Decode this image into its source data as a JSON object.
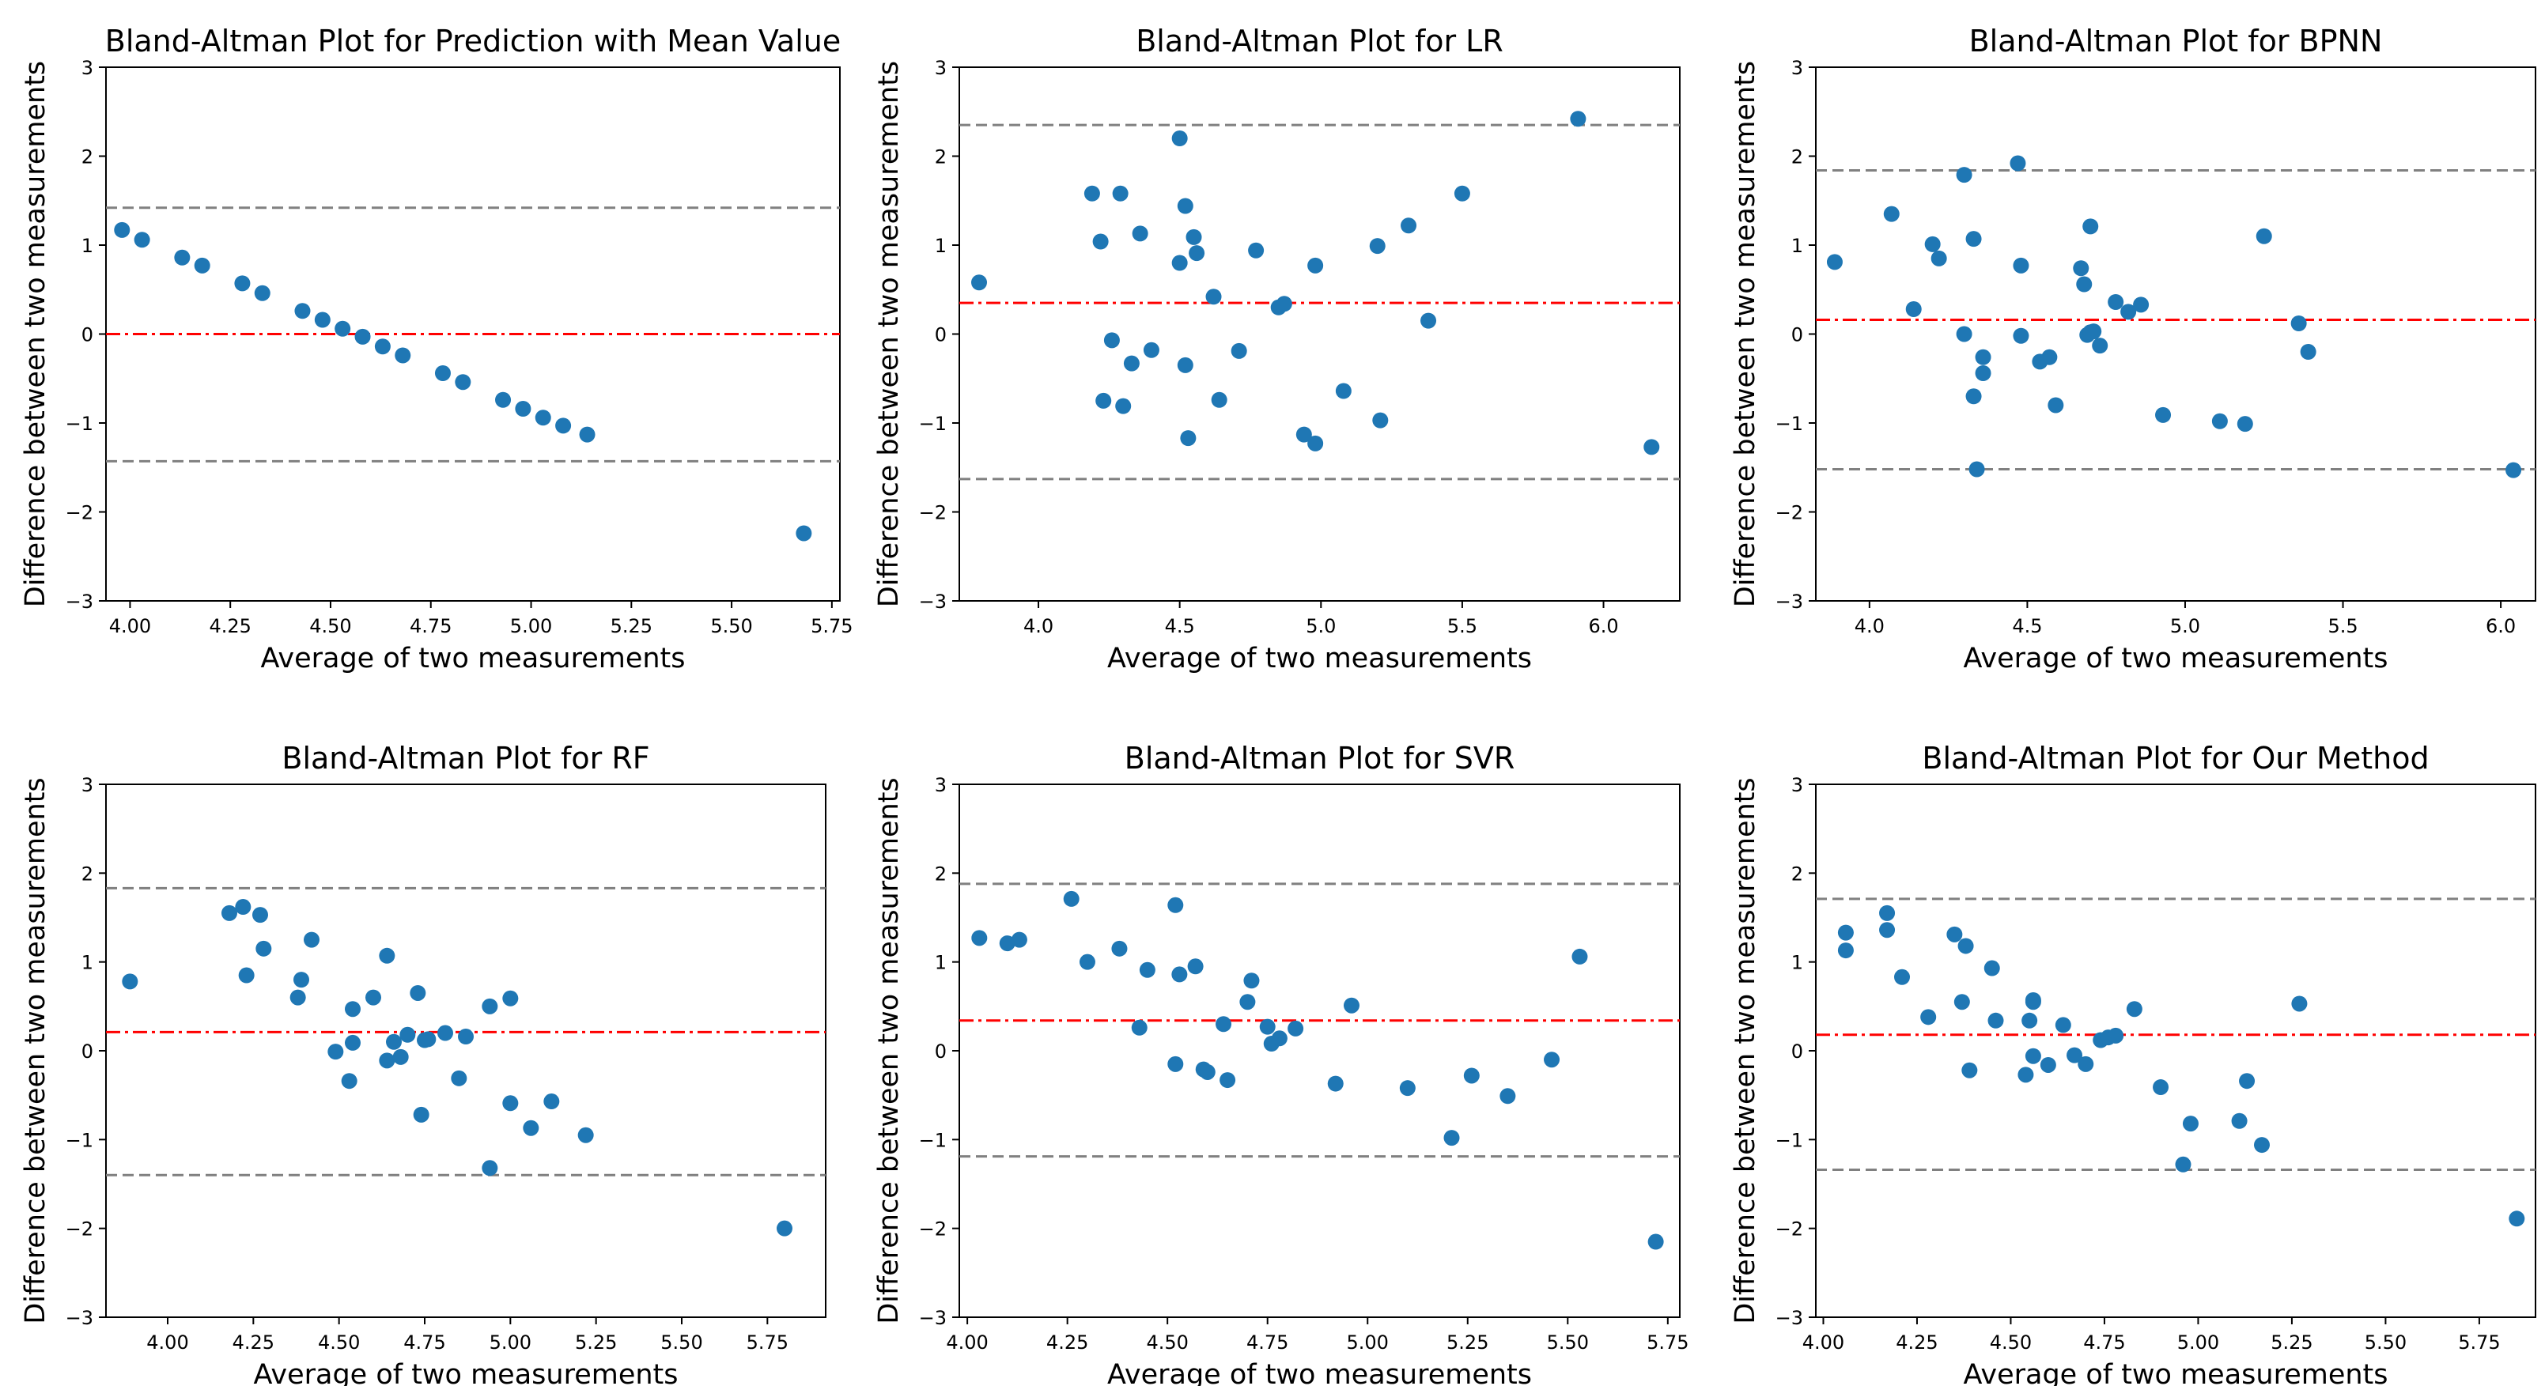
{
  "chart_data": [
    {
      "type": "scatter",
      "title": "Bland-Altman Plot for Prediction with Mean Value",
      "xlabel": "Average of two measurements",
      "ylabel": "Difference between two measurements",
      "xlim": [
        3.94,
        5.77
      ],
      "ylim": [
        -3,
        3
      ],
      "xticks": [
        4.0,
        4.25,
        4.5,
        4.75,
        5.0,
        5.25,
        5.5,
        5.75
      ],
      "xtick_labels": [
        "4.00",
        "4.25",
        "4.50",
        "4.75",
        "5.00",
        "5.25",
        "5.50",
        "5.75"
      ],
      "yticks": [
        -3,
        -2,
        -1,
        0,
        1,
        2,
        3
      ],
      "ytick_labels": [
        "−3",
        "−2",
        "−1",
        "0",
        "1",
        "2",
        "3"
      ],
      "mean_line": 0.0,
      "upper_loa": 1.42,
      "lower_loa": -1.43,
      "x": [
        3.98,
        4.03,
        4.13,
        4.18,
        4.28,
        4.33,
        4.43,
        4.48,
        4.53,
        4.58,
        4.63,
        4.68,
        4.78,
        4.83,
        4.93,
        4.98,
        5.03,
        5.08,
        5.14,
        5.68
      ],
      "y": [
        1.17,
        1.06,
        0.86,
        0.77,
        0.57,
        0.46,
        0.26,
        0.16,
        0.06,
        -0.03,
        -0.14,
        -0.24,
        -0.44,
        -0.54,
        -0.74,
        -0.84,
        -0.94,
        -1.03,
        -1.13,
        -2.24
      ]
    },
    {
      "type": "scatter",
      "title": "Bland-Altman Plot for LR",
      "xlabel": "Average of two measurements",
      "ylabel": "Difference between two measurements",
      "xlim": [
        3.72,
        6.27
      ],
      "ylim": [
        -3,
        3
      ],
      "xticks": [
        4.0,
        4.5,
        5.0,
        5.5,
        6.0
      ],
      "xtick_labels": [
        "4.0",
        "4.5",
        "5.0",
        "5.5",
        "6.0"
      ],
      "yticks": [
        -3,
        -2,
        -1,
        0,
        1,
        2,
        3
      ],
      "ytick_labels": [
        "−3",
        "−2",
        "−1",
        "0",
        "1",
        "2",
        "3"
      ],
      "mean_line": 0.35,
      "upper_loa": 2.35,
      "lower_loa": -1.63,
      "x": [
        3.79,
        4.19,
        4.22,
        4.23,
        4.26,
        4.29,
        4.3,
        4.33,
        4.36,
        4.4,
        4.5,
        4.5,
        4.52,
        4.52,
        4.53,
        4.55,
        4.56,
        4.62,
        4.64,
        4.71,
        4.77,
        4.85,
        4.87,
        4.94,
        4.98,
        4.98,
        5.08,
        5.2,
        5.21,
        5.31,
        5.38,
        5.5,
        5.91,
        6.17
      ],
      "y": [
        0.58,
        1.58,
        1.04,
        -0.75,
        -0.07,
        1.58,
        -0.81,
        -0.33,
        1.13,
        -0.18,
        2.2,
        0.8,
        1.44,
        -0.35,
        -1.17,
        1.09,
        0.91,
        0.42,
        -0.74,
        -0.19,
        0.94,
        0.3,
        0.34,
        -1.13,
        0.77,
        -1.23,
        -0.64,
        0.99,
        -0.97,
        1.22,
        0.15,
        1.58,
        2.42,
        -1.27
      ]
    },
    {
      "type": "scatter",
      "title": "Bland-Altman Plot for BPNN",
      "xlabel": "Average of two measurements",
      "ylabel": "Difference between two measurements",
      "xlim": [
        3.83,
        6.11
      ],
      "ylim": [
        -3,
        3
      ],
      "xticks": [
        4.0,
        4.5,
        5.0,
        5.5,
        6.0
      ],
      "xtick_labels": [
        "4.0",
        "4.5",
        "5.0",
        "5.5",
        "6.0"
      ],
      "yticks": [
        -3,
        -2,
        -1,
        0,
        1,
        2,
        3
      ],
      "ytick_labels": [
        "−3",
        "−2",
        "−1",
        "0",
        "1",
        "2",
        "3"
      ],
      "mean_line": 0.16,
      "upper_loa": 1.84,
      "lower_loa": -1.52,
      "x": [
        3.89,
        4.07,
        4.14,
        4.2,
        4.22,
        4.3,
        4.3,
        4.33,
        4.33,
        4.34,
        4.36,
        4.36,
        4.47,
        4.48,
        4.48,
        4.54,
        4.57,
        4.59,
        4.67,
        4.68,
        4.69,
        4.7,
        4.7,
        4.71,
        4.73,
        4.78,
        4.82,
        4.86,
        4.93,
        5.11,
        5.19,
        5.25,
        5.36,
        5.39,
        6.04
      ],
      "y": [
        0.81,
        1.35,
        0.28,
        1.01,
        0.85,
        1.79,
        0.0,
        1.07,
        -0.7,
        -1.52,
        -0.44,
        -0.26,
        1.92,
        0.77,
        -0.02,
        -0.31,
        -0.26,
        -0.8,
        0.74,
        0.56,
        -0.01,
        0.02,
        1.21,
        0.03,
        -0.13,
        0.36,
        0.25,
        0.33,
        -0.91,
        -0.98,
        -1.01,
        1.1,
        0.12,
        -0.2,
        -1.53
      ]
    },
    {
      "type": "scatter",
      "title": "Bland-Altman Plot for RF",
      "xlabel": "Average of two measurements",
      "ylabel": "Difference between two measurements",
      "xlim": [
        3.82,
        5.92
      ],
      "ylim": [
        -3,
        3
      ],
      "xticks": [
        4.0,
        4.25,
        4.5,
        4.75,
        5.0,
        5.25,
        5.5,
        5.75
      ],
      "xtick_labels": [
        "4.00",
        "4.25",
        "4.50",
        "4.75",
        "5.00",
        "5.25",
        "5.50",
        "5.75"
      ],
      "yticks": [
        -3,
        -2,
        -1,
        0,
        1,
        2,
        3
      ],
      "ytick_labels": [
        "−3",
        "−2",
        "−1",
        "0",
        "1",
        "2",
        "3"
      ],
      "mean_line": 0.21,
      "upper_loa": 1.83,
      "lower_loa": -1.4,
      "x": [
        3.89,
        4.18,
        4.22,
        4.23,
        4.27,
        4.28,
        4.38,
        4.39,
        4.42,
        4.49,
        4.53,
        4.54,
        4.54,
        4.6,
        4.64,
        4.64,
        4.66,
        4.68,
        4.7,
        4.73,
        4.74,
        4.75,
        4.76,
        4.81,
        4.85,
        4.87,
        4.94,
        4.94,
        5.0,
        5.0,
        5.06,
        5.12,
        5.22,
        5.8
      ],
      "y": [
        0.78,
        1.55,
        1.62,
        0.85,
        1.53,
        1.15,
        0.6,
        0.8,
        1.25,
        -0.01,
        -0.34,
        0.47,
        0.09,
        0.6,
        -0.11,
        1.07,
        0.1,
        -0.07,
        0.18,
        0.65,
        -0.72,
        0.12,
        0.13,
        0.2,
        -0.31,
        0.16,
        0.5,
        -1.32,
        0.59,
        -0.59,
        -0.87,
        -0.57,
        -0.95,
        -2.0
      ]
    },
    {
      "type": "scatter",
      "title": "Bland-Altman Plot for SVR",
      "xlabel": "Average of two measurements",
      "ylabel": "Difference between two measurements",
      "xlim": [
        3.98,
        5.78
      ],
      "ylim": [
        -3,
        3
      ],
      "xticks": [
        4.0,
        4.25,
        4.5,
        4.75,
        5.0,
        5.25,
        5.5,
        5.75
      ],
      "xtick_labels": [
        "4.00",
        "4.25",
        "4.50",
        "4.75",
        "5.00",
        "5.25",
        "5.50",
        "5.75"
      ],
      "yticks": [
        -3,
        -2,
        -1,
        0,
        1,
        2,
        3
      ],
      "ytick_labels": [
        "−3",
        "−2",
        "−1",
        "0",
        "1",
        "2",
        "3"
      ],
      "mean_line": 0.34,
      "upper_loa": 1.88,
      "lower_loa": -1.19,
      "x": [
        4.03,
        4.1,
        4.13,
        4.26,
        4.3,
        4.38,
        4.43,
        4.45,
        4.52,
        4.52,
        4.53,
        4.57,
        4.59,
        4.6,
        4.64,
        4.65,
        4.7,
        4.71,
        4.75,
        4.76,
        4.78,
        4.82,
        4.92,
        4.96,
        5.1,
        5.21,
        5.26,
        5.35,
        5.46,
        5.53,
        5.72
      ],
      "y": [
        1.27,
        1.21,
        1.25,
        1.71,
        1.0,
        1.15,
        0.26,
        0.91,
        -0.15,
        1.64,
        0.86,
        0.95,
        -0.21,
        -0.24,
        0.3,
        -0.33,
        0.55,
        0.79,
        0.27,
        0.08,
        0.14,
        0.25,
        -0.37,
        0.51,
        -0.42,
        -0.98,
        -0.28,
        -0.51,
        -0.1,
        1.06,
        -2.15
      ]
    },
    {
      "type": "scatter",
      "title": "Bland-Altman Plot for Our Method",
      "xlabel": "Average of two measurements",
      "ylabel": "Difference between two measurements",
      "xlim": [
        3.98,
        5.9
      ],
      "ylim": [
        -3,
        3
      ],
      "xticks": [
        4.0,
        4.25,
        4.5,
        4.75,
        5.0,
        5.25,
        5.5,
        5.75
      ],
      "xtick_labels": [
        "4.00",
        "4.25",
        "4.50",
        "4.75",
        "5.00",
        "5.25",
        "5.50",
        "5.75"
      ],
      "yticks": [
        -3,
        -2,
        -1,
        0,
        1,
        2,
        3
      ],
      "ytick_labels": [
        "−3",
        "−2",
        "−1",
        "0",
        "1",
        "2",
        "3"
      ],
      "mean_line": 0.18,
      "upper_loa": 1.71,
      "lower_loa": -1.34,
      "x": [
        4.06,
        4.06,
        4.17,
        4.17,
        4.21,
        4.28,
        4.35,
        4.37,
        4.38,
        4.39,
        4.45,
        4.46,
        4.54,
        4.55,
        4.56,
        4.56,
        4.56,
        4.6,
        4.64,
        4.67,
        4.7,
        4.74,
        4.76,
        4.78,
        4.83,
        4.9,
        4.96,
        4.98,
        5.11,
        5.13,
        5.17,
        5.27,
        5.85
      ],
      "y": [
        1.33,
        1.13,
        1.55,
        1.36,
        0.83,
        0.38,
        1.31,
        0.55,
        1.18,
        -0.22,
        0.93,
        0.34,
        -0.27,
        0.34,
        0.57,
        -0.06,
        0.55,
        -0.16,
        0.29,
        -0.05,
        -0.15,
        0.12,
        0.15,
        0.17,
        0.47,
        -0.41,
        -1.28,
        -0.82,
        -0.79,
        -0.34,
        -1.06,
        0.53,
        -1.89
      ]
    }
  ],
  "style": {
    "point_color": "#1f77b4",
    "mean_line_color": "#ff0000",
    "loa_line_color": "#808080",
    "axis_color": "#000000"
  }
}
